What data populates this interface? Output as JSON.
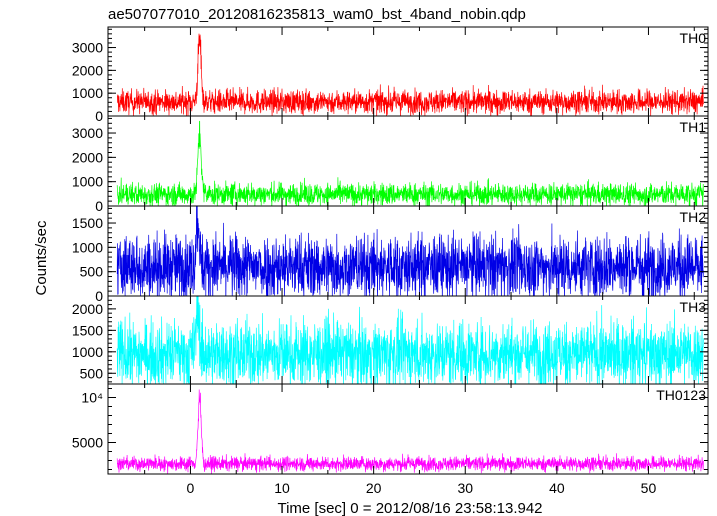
{
  "chart_data": {
    "type": "line",
    "title": "ae507077010_20120816235813_wam0_bst_4band_nobin.qdp",
    "xlabel": "Time [sec] 0 = 2012/08/16 23:58:13.942",
    "ylabel": "Counts/sec",
    "xlim": [
      -9,
      56.5
    ],
    "xticks": [
      0,
      10,
      20,
      30,
      40,
      50
    ],
    "grid": false,
    "panels": [
      {
        "name": "TH0",
        "color": "#ff0000",
        "ylim": [
          0,
          3900
        ],
        "yticks": [
          0,
          1000,
          2000,
          3000
        ],
        "ytick_labels": [
          "0",
          "1000",
          "2000",
          "3000"
        ],
        "baseline": 620,
        "noise": 260,
        "peak_time": 1.0,
        "peak_value": 3800,
        "series": [
          {
            "x": [
              -8,
              -4,
              0,
              0.6,
              1.0,
              1.4,
              2,
              10,
              20,
              30,
              40,
              50,
              56
            ],
            "y": [
              600,
              620,
              650,
              1800,
              3800,
              2000,
              700,
              620,
              620,
              620,
              620,
              620,
              620
            ]
          }
        ]
      },
      {
        "name": "TH1",
        "color": "#00ff00",
        "ylim": [
          0,
          3700
        ],
        "yticks": [
          0,
          1000,
          2000,
          3000
        ],
        "ytick_labels": [
          "0",
          "1000",
          "2000",
          "3000"
        ],
        "baseline": 480,
        "noise": 230,
        "peak_time": 1.0,
        "peak_value": 3500,
        "series": [
          {
            "x": [
              -8,
              -4,
              0,
              0.6,
              1.0,
              1.4,
              2,
              10,
              20,
              30,
              40,
              50,
              56
            ],
            "y": [
              480,
              480,
              500,
              1500,
              3500,
              1700,
              550,
              480,
              480,
              480,
              480,
              480,
              480
            ]
          }
        ]
      },
      {
        "name": "TH2",
        "color": "#0000e6",
        "ylim": [
          0,
          1850
        ],
        "yticks": [
          0,
          500,
          1000,
          1500
        ],
        "ytick_labels": [
          "0",
          "500",
          "1000",
          "1500"
        ],
        "baseline": 600,
        "noise": 330,
        "peak_time": 0.8,
        "peak_value": 1800,
        "series": [
          {
            "x": [
              -8,
              -4,
              0,
              0.6,
              1.0,
              1.4,
              2,
              10,
              20,
              30,
              40,
              50,
              56
            ],
            "y": [
              600,
              600,
              620,
              1300,
              1800,
              1200,
              650,
              600,
              600,
              600,
              600,
              600,
              600
            ]
          }
        ]
      },
      {
        "name": "TH3",
        "color": "#00ffff",
        "ylim": [
          250,
          2300
        ],
        "yticks": [
          500,
          1000,
          1500,
          2000
        ],
        "ytick_labels": [
          "500",
          "1000",
          "1500",
          "2000"
        ],
        "baseline": 950,
        "noise": 380,
        "peak_time": 0.8,
        "peak_value": 2200,
        "series": [
          {
            "x": [
              -8,
              -4,
              0,
              0.6,
              1.0,
              1.4,
              2,
              10,
              20,
              30,
              40,
              50,
              56
            ],
            "y": [
              950,
              950,
              970,
              1500,
              2200,
              1400,
              980,
              950,
              950,
              950,
              950,
              950,
              950
            ]
          }
        ]
      },
      {
        "name": "TH0123",
        "color": "#ff00ff",
        "ylim": [
          1500,
          11500
        ],
        "yticks": [
          5000,
          10000
        ],
        "ytick_labels": [
          "5000",
          "10⁴"
        ],
        "baseline": 2650,
        "noise": 400,
        "peak_time": 1.0,
        "peak_value": 11000,
        "series": [
          {
            "x": [
              -8,
              -4,
              0,
              0.6,
              1.0,
              1.4,
              2,
              10,
              20,
              30,
              40,
              50,
              56
            ],
            "y": [
              2650,
              2650,
              2700,
              6000,
              11000,
              6000,
              2800,
              2650,
              2650,
              2650,
              2650,
              2650,
              2650
            ]
          }
        ]
      }
    ]
  }
}
